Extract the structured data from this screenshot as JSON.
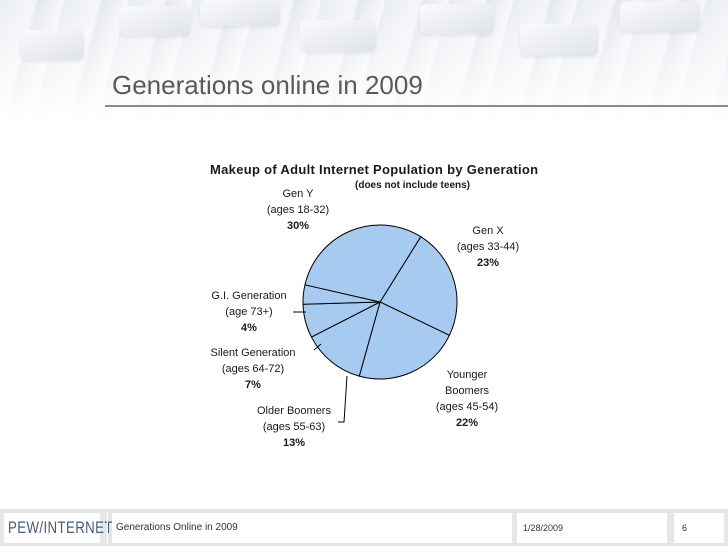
{
  "slide": {
    "title": "Generations online in 2009"
  },
  "footer": {
    "logo_text": "PEW/INTERNET",
    "left_text": "Generations Online in 2009",
    "date": "1/28/2009",
    "page_number": "6"
  },
  "chart_data": {
    "type": "pie",
    "title": "Makeup of Adult Internet Population by Generation",
    "subtitle": "(does not include teens)",
    "slice_color": "#a6caf0",
    "outline_color": "#000000",
    "slices": [
      {
        "name": "Gen X",
        "range": "(ages 33-44)",
        "value": 23,
        "label": "23%"
      },
      {
        "name": "Younger Boomers",
        "range": "(ages 45-54)",
        "value": 22,
        "label": "22%"
      },
      {
        "name": "Older Boomers",
        "range": "(ages 55-63)",
        "value": 13,
        "label": "13%"
      },
      {
        "name": "Silent Generation",
        "range": "(ages 64-72)",
        "value": 7,
        "label": "7%"
      },
      {
        "name": "G.I. Generation",
        "range": "(age 73+)",
        "value": 4,
        "label": "4%"
      },
      {
        "name": "Gen Y",
        "range": "(ages 18-32)",
        "value": 30,
        "label": "30%"
      }
    ]
  }
}
